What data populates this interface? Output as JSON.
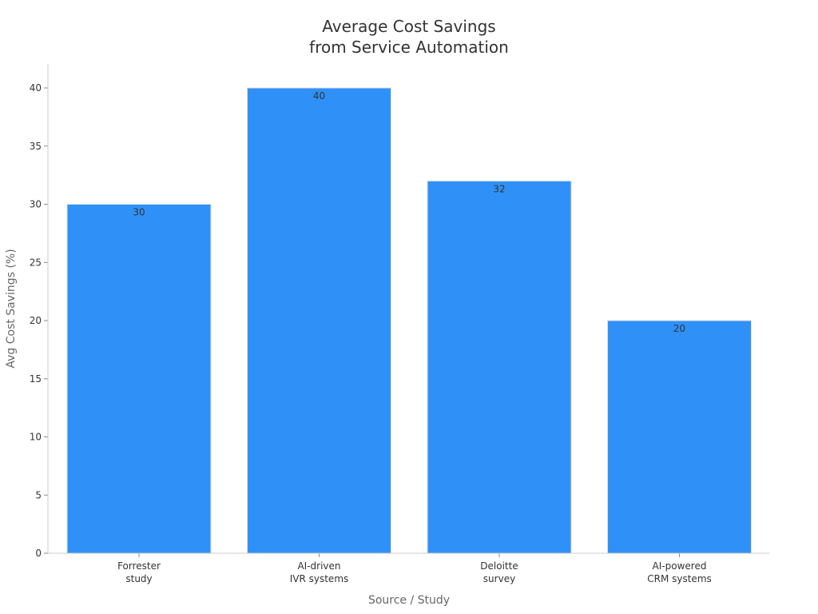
{
  "chart_data": {
    "type": "bar",
    "title": [
      "Average Cost Savings",
      "from Service Automation"
    ],
    "xlabel": "Source / Study",
    "ylabel": "Avg Cost Savings (%)",
    "categories": [
      [
        "Forrester",
        "study"
      ],
      [
        "AI-driven",
        "IVR systems"
      ],
      [
        "Deloitte",
        "survey"
      ],
      [
        "AI-powered",
        "CRM systems"
      ]
    ],
    "values": [
      30,
      40,
      32,
      20
    ],
    "value_labels": [
      "30",
      "40",
      "32",
      "20"
    ],
    "ylim": [
      0,
      42
    ],
    "yticks": [
      0,
      5,
      10,
      15,
      20,
      25,
      30,
      35,
      40
    ],
    "ytick_labels": [
      "0",
      "5",
      "10",
      "15",
      "20",
      "25",
      "30",
      "35",
      "40"
    ],
    "bar_color": "#2F91F7",
    "grid": false
  }
}
